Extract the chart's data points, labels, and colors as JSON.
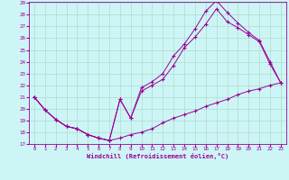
{
  "xlabel": "Windchill (Refroidissement éolien,°C)",
  "bg_color": "#cef5f5",
  "line_color": "#990099",
  "grid_color": "#aaddcc",
  "xlim": [
    -0.5,
    23.5
  ],
  "ylim": [
    17,
    29
  ],
  "yticks": [
    17,
    18,
    19,
    20,
    21,
    22,
    23,
    24,
    25,
    26,
    27,
    28,
    29
  ],
  "xticks": [
    0,
    1,
    2,
    3,
    4,
    5,
    6,
    7,
    8,
    9,
    10,
    11,
    12,
    13,
    14,
    15,
    16,
    17,
    18,
    19,
    20,
    21,
    22,
    23
  ],
  "series": [
    {
      "x": [
        0,
        1,
        2,
        3,
        4,
        5,
        6,
        7,
        8,
        9,
        10,
        11,
        12,
        13,
        14,
        15,
        16,
        17,
        18,
        19,
        20,
        21,
        22,
        23
      ],
      "y": [
        21.0,
        19.9,
        19.1,
        18.5,
        18.3,
        17.8,
        17.5,
        17.3,
        17.5,
        17.8,
        18.0,
        18.3,
        18.8,
        19.2,
        19.5,
        19.8,
        20.2,
        20.5,
        20.8,
        21.2,
        21.5,
        21.7,
        22.0,
        22.2
      ]
    },
    {
      "x": [
        0,
        1,
        2,
        3,
        4,
        5,
        6,
        7,
        8,
        9,
        10,
        11,
        12,
        13,
        14,
        15,
        16,
        17,
        18,
        19,
        20,
        21,
        22,
        23
      ],
      "y": [
        21.0,
        19.9,
        19.1,
        18.5,
        18.3,
        17.8,
        17.5,
        17.3,
        20.8,
        19.2,
        21.5,
        22.0,
        22.5,
        23.7,
        25.2,
        26.1,
        27.2,
        28.5,
        27.4,
        26.9,
        26.3,
        25.7,
        23.8,
        22.2
      ]
    },
    {
      "x": [
        0,
        1,
        2,
        3,
        4,
        5,
        6,
        7,
        8,
        9,
        10,
        11,
        12,
        13,
        14,
        15,
        16,
        17,
        18,
        19,
        20,
        21,
        22,
        23
      ],
      "y": [
        21.0,
        19.9,
        19.1,
        18.5,
        18.3,
        17.8,
        17.5,
        17.3,
        20.8,
        19.2,
        21.8,
        22.3,
        23.0,
        24.5,
        25.5,
        26.8,
        28.3,
        29.2,
        28.2,
        27.3,
        26.5,
        25.8,
        24.0,
        22.2
      ]
    }
  ]
}
